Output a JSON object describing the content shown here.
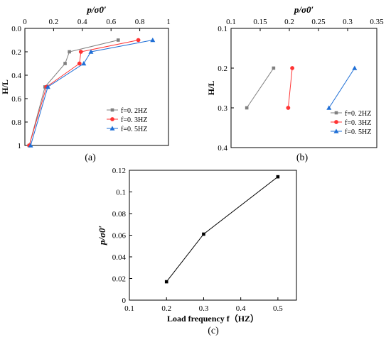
{
  "chart_data": [
    {
      "panel": "(a)",
      "type": "line",
      "xlabel": "p/σ0′",
      "ylabel": "H/L",
      "x_axis_position": "top",
      "y_reversed": true,
      "xlim": [
        0,
        1
      ],
      "ylim": [
        0,
        1
      ],
      "x_ticks": [
        "0",
        "0.2",
        "0.4",
        "0.6",
        "0.8",
        "1"
      ],
      "y_ticks": [
        "0.0",
        "0.2",
        "0.4",
        "0.6",
        "0.8",
        "1"
      ],
      "legend_position": "bottom-right",
      "series": [
        {
          "name": "f=0. 2HZ",
          "color": "#808080",
          "marker": "square",
          "points": [
            [
              0.03,
              1.0
            ],
            [
              0.14,
              0.5
            ],
            [
              0.28,
              0.3
            ],
            [
              0.31,
              0.2
            ],
            [
              0.65,
              0.1
            ]
          ]
        },
        {
          "name": "f=0. 3HZ",
          "color": "#ff3333",
          "marker": "circle",
          "points": [
            [
              0.03,
              1.0
            ],
            [
              0.15,
              0.5
            ],
            [
              0.38,
              0.3
            ],
            [
              0.39,
              0.2
            ],
            [
              0.79,
              0.1
            ]
          ]
        },
        {
          "name": "f=0. 5HZ",
          "color": "#1f6fd6",
          "marker": "triangle",
          "points": [
            [
              0.04,
              1.0
            ],
            [
              0.16,
              0.5
            ],
            [
              0.41,
              0.3
            ],
            [
              0.46,
              0.2
            ],
            [
              0.89,
              0.1
            ]
          ]
        }
      ]
    },
    {
      "panel": "(b)",
      "type": "line",
      "xlabel": "p/σ0′",
      "ylabel": "H/L",
      "x_axis_position": "top",
      "y_reversed": true,
      "xlim": [
        0.1,
        0.35
      ],
      "ylim": [
        0.1,
        0.4
      ],
      "x_ticks": [
        "0.1",
        "0.15",
        "0.2",
        "0.25",
        "0.3",
        "0.35"
      ],
      "y_ticks": [
        "0.1",
        "0.2",
        "0.3",
        "0.4"
      ],
      "legend_position": "bottom-right",
      "series": [
        {
          "name": "f=0. 2HZ",
          "color": "#808080",
          "marker": "square",
          "points": [
            [
              0.127,
              0.3
            ],
            [
              0.173,
              0.2
            ]
          ]
        },
        {
          "name": "f=0. 3HZ",
          "color": "#ff3333",
          "marker": "circle",
          "points": [
            [
              0.198,
              0.3
            ],
            [
              0.205,
              0.2
            ]
          ]
        },
        {
          "name": "f=0. 5HZ",
          "color": "#1f6fd6",
          "marker": "triangle",
          "points": [
            [
              0.268,
              0.3
            ],
            [
              0.312,
              0.2
            ]
          ]
        }
      ]
    },
    {
      "panel": "(c)",
      "type": "line",
      "xlabel": "Load frequency f（HZ）",
      "ylabel": "p/σ0′",
      "xlim": [
        0.1,
        0.55
      ],
      "ylim": [
        0,
        0.12
      ],
      "x_ticks": [
        "0.1",
        "0.2",
        "0.3",
        "0.4",
        "0.5"
      ],
      "y_ticks": [
        "0",
        "0.02",
        "0.04",
        "0.06",
        "0.08",
        "0.1",
        "0.12"
      ],
      "series": [
        {
          "color": "#000000",
          "marker": "square",
          "points": [
            [
              0.2,
              0.017
            ],
            [
              0.3,
              0.061
            ],
            [
              0.5,
              0.114
            ]
          ]
        }
      ]
    }
  ]
}
